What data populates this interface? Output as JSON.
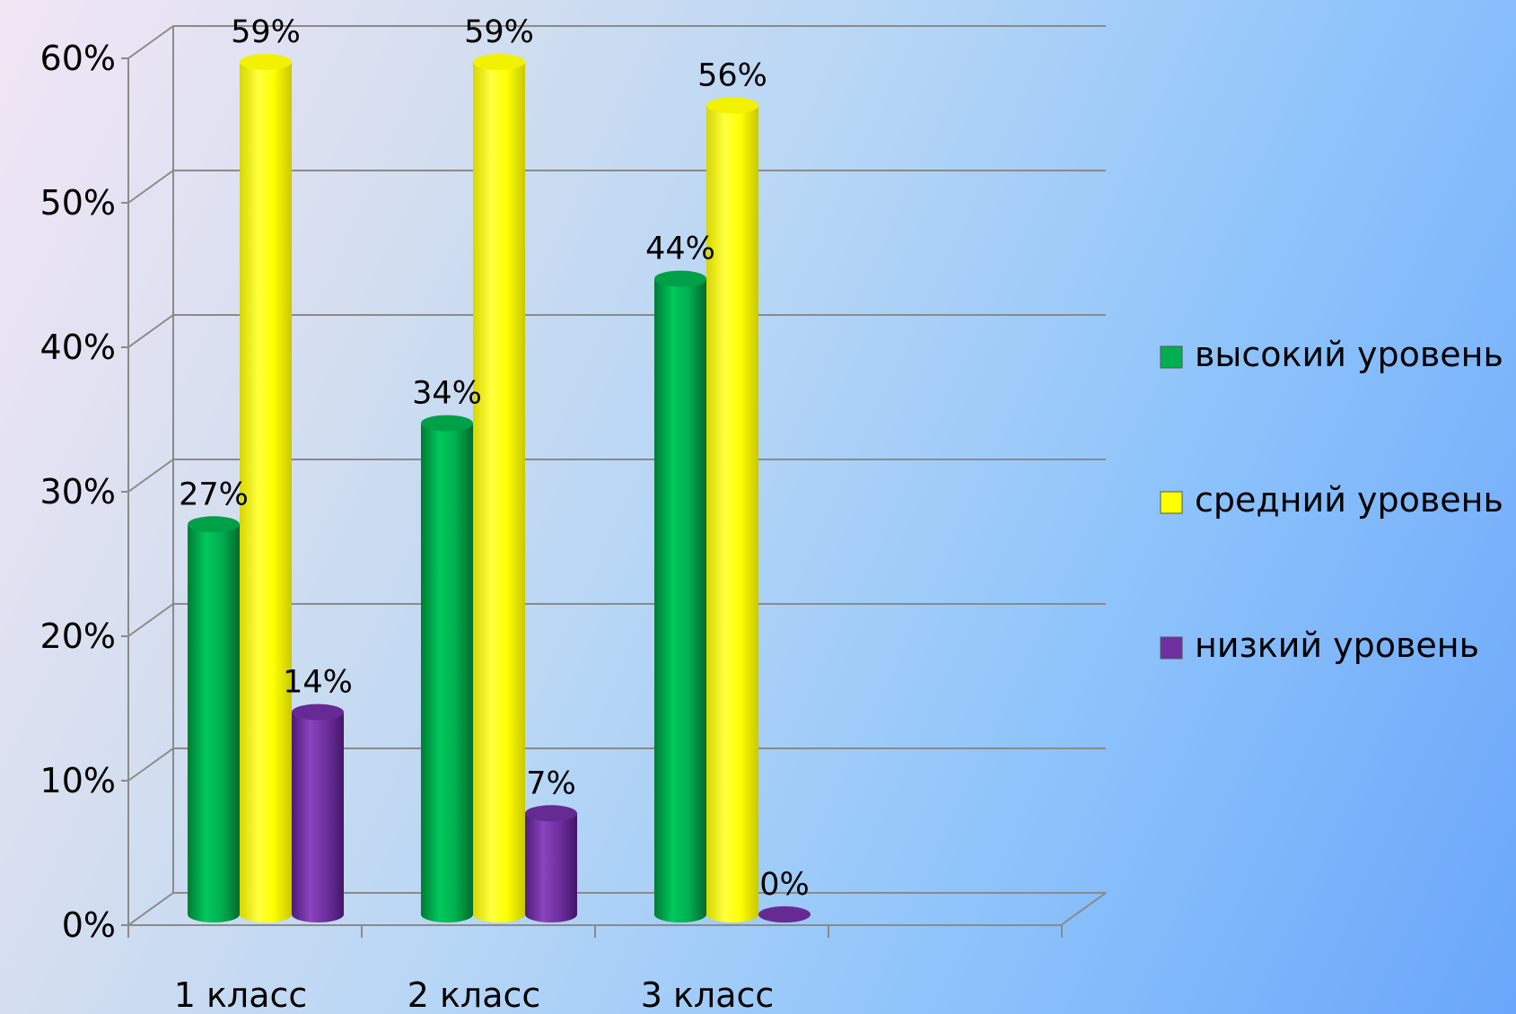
{
  "chart_data": {
    "type": "bar",
    "categories": [
      "1 класс",
      "2 класс",
      "3 класс"
    ],
    "y_ticks": [
      "0%",
      "10%",
      "20%",
      "30%",
      "40%",
      "50%",
      "60%"
    ],
    "ylim": [
      0,
      60
    ],
    "grid": true,
    "legend_position": "right",
    "series": [
      {
        "name": "высокий уровень",
        "color": "#00b050",
        "values": [
          27,
          34,
          44
        ],
        "labels": [
          "27%",
          "34%",
          "44%"
        ]
      },
      {
        "name": "средний уровень",
        "color": "#ffff00",
        "values": [
          59,
          59,
          56
        ],
        "labels": [
          "59%",
          "59%",
          "56%"
        ]
      },
      {
        "name": "низкий уровень",
        "color": "#7030a0",
        "values": [
          14,
          7,
          0
        ],
        "labels": [
          "14%",
          "7%",
          "0%"
        ]
      }
    ]
  }
}
